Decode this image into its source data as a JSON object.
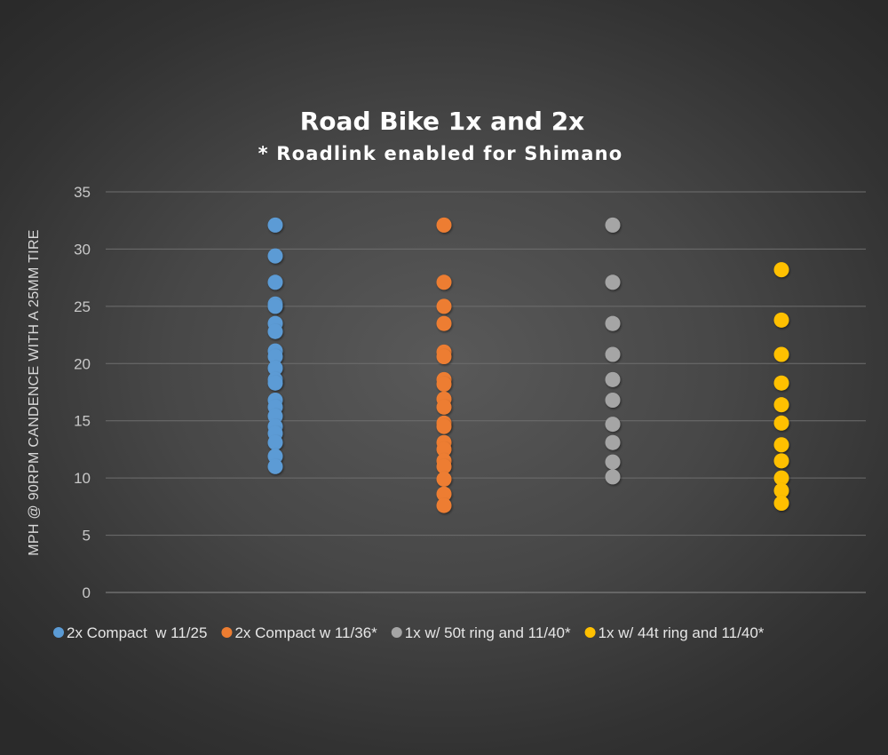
{
  "chart_data": {
    "type": "scatter",
    "title": "Road Bike 1x and 2x",
    "subtitle": "* Roadlink enabled for Shimano",
    "xlabel": "",
    "ylabel": "MPH @ 90RPM CANDENCE WITH A 25MM TIRE",
    "ylim": [
      0,
      35
    ],
    "yticks": [
      "0",
      "5",
      "10",
      "15",
      "20",
      "25",
      "30",
      "35"
    ],
    "grid": true,
    "legend_position": "bottom",
    "series": [
      {
        "name": "2x Compact  w 11/25",
        "color": "#5b9bd5",
        "values": [
          32.1,
          29.4,
          27.1,
          25.2,
          25.0,
          23.5,
          22.8,
          21.1,
          20.6,
          19.6,
          18.6,
          18.3,
          16.8,
          16.2,
          15.4,
          14.5,
          13.9,
          13.1,
          11.9,
          11.0
        ]
      },
      {
        "name": "2x Compact w 11/36*",
        "color": "#ed7d31",
        "values": [
          32.1,
          27.1,
          25.0,
          23.5,
          21.0,
          20.6,
          18.6,
          18.2,
          16.9,
          16.2,
          14.8,
          14.5,
          13.1,
          12.5,
          11.5,
          11.0,
          9.9,
          8.6,
          7.6
        ]
      },
      {
        "name": "1x w/ 50t ring and 11/40*",
        "color": "#a5a5a5",
        "values": [
          32.1,
          27.1,
          23.5,
          20.8,
          18.6,
          16.8,
          14.7,
          13.1,
          11.4,
          10.1
        ]
      },
      {
        "name": "1x w/ 44t ring and 11/40*",
        "color": "#ffc000",
        "values": [
          28.2,
          23.8,
          20.8,
          18.3,
          16.4,
          14.8,
          12.9,
          11.5,
          10.0,
          8.9,
          7.8
        ]
      }
    ]
  }
}
